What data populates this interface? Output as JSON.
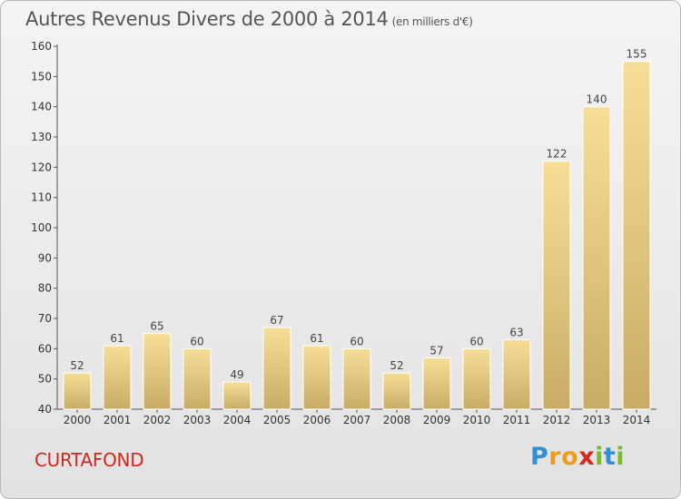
{
  "chart_data": {
    "type": "bar",
    "title": "Autres Revenus Divers de 2000 à 2014",
    "subtitle": "(en milliers d'€)",
    "categories": [
      "2000",
      "2001",
      "2002",
      "2003",
      "2004",
      "2005",
      "2006",
      "2007",
      "2008",
      "2009",
      "2010",
      "2011",
      "2012",
      "2013",
      "2014"
    ],
    "values": [
      52,
      61,
      65,
      60,
      49,
      67,
      61,
      60,
      52,
      57,
      60,
      63,
      122,
      140,
      155
    ],
    "ylim": [
      40,
      160
    ],
    "yticks": [
      40,
      50,
      60,
      70,
      80,
      90,
      100,
      110,
      120,
      130,
      140,
      150,
      160
    ],
    "xlabel": "",
    "ylabel": "",
    "grid": false,
    "colors": {
      "bar_top": "#f7de96",
      "bar_bottom": "#c8ac65",
      "bar_stroke": "#ffffff"
    }
  },
  "place_name": "CURTAFOND",
  "logo": {
    "letters": [
      "P",
      "r",
      "o",
      "x",
      "i",
      "t",
      "i"
    ],
    "colors": [
      "#2f8fd8",
      "#f09a1c",
      "#f09a1c",
      "#d9261c",
      "#7dbb2a",
      "#2f8fd8",
      "#7dbb2a"
    ]
  }
}
